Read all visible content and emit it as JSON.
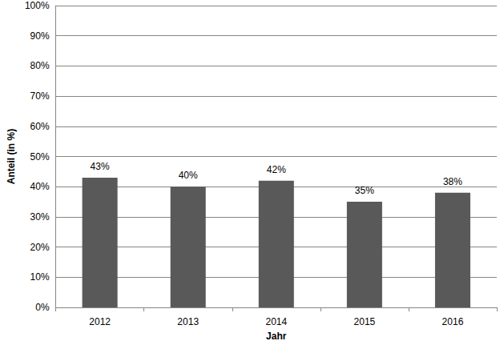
{
  "chart_data": {
    "type": "bar",
    "x_label": "Jahr",
    "y_label": "Anteil (in %)",
    "categories": [
      "2012",
      "2013",
      "2014",
      "2015",
      "2016"
    ],
    "values": [
      43,
      40,
      42,
      35,
      38
    ],
    "value_labels": [
      "43%",
      "40%",
      "42%",
      "35%",
      "38%"
    ],
    "color": "#595959",
    "ylim": [
      0,
      100
    ],
    "yticks": [
      {
        "value": 0,
        "label": "0%"
      },
      {
        "value": 10,
        "label": "10%"
      },
      {
        "value": 20,
        "label": "20%"
      },
      {
        "value": 30,
        "label": "30%"
      },
      {
        "value": 40,
        "label": "40%"
      },
      {
        "value": 50,
        "label": "50%"
      },
      {
        "value": 60,
        "label": "60%"
      },
      {
        "value": 70,
        "label": "70%"
      },
      {
        "value": 80,
        "label": "80%"
      },
      {
        "value": 90,
        "label": "90%"
      },
      {
        "value": 100,
        "label": "100%"
      }
    ],
    "grid": true,
    "data_labels": true
  }
}
